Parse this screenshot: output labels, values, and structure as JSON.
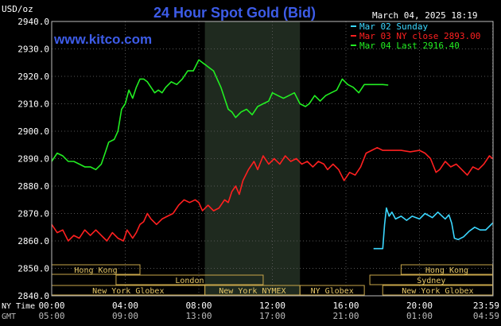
{
  "chart_data": {
    "type": "line",
    "title": "24 Hour Spot Gold (Bid)",
    "watermark": "www.kitco.com",
    "unit_label": "USD/oz",
    "datetime": "March 04, 2025 18:19",
    "ylim": [
      2840,
      2940
    ],
    "yticks": [
      "2940.0",
      "2930.0",
      "2920.0",
      "2910.0",
      "2900.0",
      "2890.0",
      "2880.0",
      "2870.0",
      "2860.0",
      "2850.0",
      "2840.0"
    ],
    "x_rows": [
      {
        "label": "NY Time",
        "ticks": [
          "00:00",
          "04:00",
          "08:00",
          "12:00",
          "16:00",
          "20:00",
          "23:59"
        ]
      },
      {
        "label": "GMT",
        "ticks": [
          "05:00",
          "09:00",
          "13:00",
          "17:00",
          "21:00",
          "01:00",
          "04:59"
        ]
      }
    ],
    "x_ticks_hours": [
      0,
      4,
      8,
      12,
      16,
      20,
      23.98
    ],
    "nymex_session_hours": [
      8.33,
      13.5
    ],
    "legend": [
      {
        "text": "Mar 02 Sunday",
        "color": "#3bd7ff"
      },
      {
        "text": "Mar 03 NY close 2893.00",
        "color": "#ff2020"
      },
      {
        "text": "Mar 04 Last 2916.40",
        "color": "#22ee22"
      }
    ],
    "sessions": [
      {
        "label": "Hong Kong",
        "start": 0,
        "end": 4.8,
        "row": 0
      },
      {
        "label": "London",
        "start": 3.5,
        "end": 11.5,
        "row": 1
      },
      {
        "label": "New York Globex",
        "start": 0,
        "end": 8.33,
        "row": 2
      },
      {
        "label": "New York NYMEX",
        "start": 8.33,
        "end": 13.5,
        "row": 2
      },
      {
        "label": "NY Globex",
        "start": 13.5,
        "end": 17,
        "row": 2
      },
      {
        "label": "Hong Kong",
        "start": 19,
        "end": 23.98,
        "row": 0
      },
      {
        "label": "Sydney",
        "start": 17.3,
        "end": 23.98,
        "row": 1
      },
      {
        "label": "New York Globex",
        "start": 18,
        "end": 23.98,
        "row": 2
      }
    ],
    "series": [
      {
        "name": "Mar 02 Sunday",
        "color": "#3bd7ff",
        "points": [
          [
            17.5,
            2857.2
          ],
          [
            18.0,
            2857.2
          ],
          [
            18.1,
            2866
          ],
          [
            18.2,
            2872
          ],
          [
            18.35,
            2869
          ],
          [
            18.5,
            2870.5
          ],
          [
            18.7,
            2868
          ],
          [
            19.0,
            2869
          ],
          [
            19.3,
            2867.5
          ],
          [
            19.6,
            2869
          ],
          [
            20.0,
            2868
          ],
          [
            20.3,
            2870
          ],
          [
            20.7,
            2868.5
          ],
          [
            21.0,
            2870.5
          ],
          [
            21.4,
            2868
          ],
          [
            21.6,
            2869.5
          ],
          [
            21.75,
            2866.5
          ],
          [
            21.9,
            2861
          ],
          [
            22.1,
            2860.5
          ],
          [
            22.4,
            2861.5
          ],
          [
            22.7,
            2863.5
          ],
          [
            23.0,
            2865
          ],
          [
            23.3,
            2864
          ],
          [
            23.6,
            2864
          ],
          [
            23.98,
            2866.5
          ]
        ]
      },
      {
        "name": "Mar 03 NY close 2893.00",
        "color": "#ff2020",
        "points": [
          [
            0,
            2866
          ],
          [
            0.3,
            2863
          ],
          [
            0.6,
            2864
          ],
          [
            0.9,
            2860
          ],
          [
            1.2,
            2862
          ],
          [
            1.5,
            2861
          ],
          [
            1.8,
            2864
          ],
          [
            2.1,
            2862
          ],
          [
            2.4,
            2864
          ],
          [
            2.7,
            2862
          ],
          [
            3.0,
            2860
          ],
          [
            3.3,
            2863
          ],
          [
            3.6,
            2861
          ],
          [
            3.9,
            2860
          ],
          [
            4.1,
            2864
          ],
          [
            4.4,
            2861
          ],
          [
            4.6,
            2863
          ],
          [
            4.8,
            2866
          ],
          [
            5.0,
            2867
          ],
          [
            5.2,
            2870
          ],
          [
            5.4,
            2868
          ],
          [
            5.7,
            2866
          ],
          [
            6.0,
            2868
          ],
          [
            6.3,
            2869
          ],
          [
            6.6,
            2870
          ],
          [
            6.9,
            2873
          ],
          [
            7.2,
            2875
          ],
          [
            7.5,
            2874
          ],
          [
            7.8,
            2875
          ],
          [
            8.0,
            2874
          ],
          [
            8.2,
            2871
          ],
          [
            8.5,
            2873
          ],
          [
            8.8,
            2871
          ],
          [
            9.1,
            2872
          ],
          [
            9.4,
            2875
          ],
          [
            9.6,
            2874
          ],
          [
            9.8,
            2878
          ],
          [
            10.0,
            2880
          ],
          [
            10.2,
            2877
          ],
          [
            10.4,
            2882
          ],
          [
            10.7,
            2886
          ],
          [
            11.0,
            2889
          ],
          [
            11.2,
            2886
          ],
          [
            11.5,
            2891
          ],
          [
            11.8,
            2888
          ],
          [
            12.1,
            2890
          ],
          [
            12.4,
            2888
          ],
          [
            12.7,
            2891
          ],
          [
            13.0,
            2889
          ],
          [
            13.3,
            2890
          ],
          [
            13.6,
            2888
          ],
          [
            13.9,
            2889
          ],
          [
            14.2,
            2887
          ],
          [
            14.5,
            2889
          ],
          [
            14.8,
            2888
          ],
          [
            15.0,
            2886
          ],
          [
            15.3,
            2888
          ],
          [
            15.6,
            2886
          ],
          [
            15.9,
            2882
          ],
          [
            16.2,
            2885
          ],
          [
            16.5,
            2884
          ],
          [
            16.8,
            2887
          ],
          [
            17.1,
            2892
          ],
          [
            17.4,
            2893
          ],
          [
            17.7,
            2894
          ],
          [
            18.0,
            2893
          ],
          [
            18.5,
            2893
          ],
          [
            19.0,
            2893
          ],
          [
            19.5,
            2892.5
          ],
          [
            20.0,
            2893
          ],
          [
            20.3,
            2892
          ],
          [
            20.6,
            2890
          ],
          [
            20.9,
            2885
          ],
          [
            21.1,
            2886
          ],
          [
            21.4,
            2889
          ],
          [
            21.7,
            2887
          ],
          [
            22.0,
            2888
          ],
          [
            22.3,
            2886
          ],
          [
            22.6,
            2884
          ],
          [
            22.9,
            2887
          ],
          [
            23.2,
            2886
          ],
          [
            23.5,
            2888
          ],
          [
            23.8,
            2891
          ],
          [
            23.98,
            2890
          ]
        ]
      },
      {
        "name": "Mar 04 Last 2916.40",
        "color": "#22ee22",
        "points": [
          [
            0,
            2889
          ],
          [
            0.3,
            2892
          ],
          [
            0.6,
            2891
          ],
          [
            0.9,
            2889
          ],
          [
            1.2,
            2889
          ],
          [
            1.5,
            2888
          ],
          [
            1.8,
            2887
          ],
          [
            2.1,
            2887
          ],
          [
            2.4,
            2886
          ],
          [
            2.7,
            2888
          ],
          [
            2.9,
            2892
          ],
          [
            3.1,
            2896
          ],
          [
            3.4,
            2897
          ],
          [
            3.6,
            2900
          ],
          [
            3.8,
            2908
          ],
          [
            4.0,
            2910
          ],
          [
            4.2,
            2915
          ],
          [
            4.4,
            2912
          ],
          [
            4.6,
            2916
          ],
          [
            4.8,
            2919
          ],
          [
            5.0,
            2919
          ],
          [
            5.2,
            2918
          ],
          [
            5.4,
            2916
          ],
          [
            5.6,
            2914
          ],
          [
            5.8,
            2915
          ],
          [
            6.0,
            2914
          ],
          [
            6.2,
            2916
          ],
          [
            6.5,
            2918
          ],
          [
            6.8,
            2917
          ],
          [
            7.1,
            2919
          ],
          [
            7.4,
            2922
          ],
          [
            7.7,
            2922
          ],
          [
            8.0,
            2926
          ],
          [
            8.2,
            2925
          ],
          [
            8.4,
            2924
          ],
          [
            8.6,
            2923
          ],
          [
            8.8,
            2922
          ],
          [
            9.0,
            2919
          ],
          [
            9.2,
            2916
          ],
          [
            9.4,
            2912
          ],
          [
            9.6,
            2908
          ],
          [
            9.8,
            2907
          ],
          [
            10.0,
            2905
          ],
          [
            10.3,
            2907
          ],
          [
            10.6,
            2908
          ],
          [
            10.9,
            2906
          ],
          [
            11.2,
            2909
          ],
          [
            11.5,
            2910
          ],
          [
            11.8,
            2911
          ],
          [
            12.0,
            2914
          ],
          [
            12.3,
            2913
          ],
          [
            12.6,
            2912
          ],
          [
            12.9,
            2913
          ],
          [
            13.2,
            2914
          ],
          [
            13.5,
            2910
          ],
          [
            13.8,
            2909
          ],
          [
            14.0,
            2910
          ],
          [
            14.3,
            2913
          ],
          [
            14.6,
            2911
          ],
          [
            14.9,
            2913
          ],
          [
            15.2,
            2914
          ],
          [
            15.5,
            2915
          ],
          [
            15.8,
            2919
          ],
          [
            16.1,
            2917
          ],
          [
            16.4,
            2916
          ],
          [
            16.7,
            2914
          ],
          [
            17.0,
            2917
          ],
          [
            17.5,
            2917
          ],
          [
            18.0,
            2917
          ],
          [
            18.3,
            2916.8
          ]
        ]
      }
    ]
  }
}
